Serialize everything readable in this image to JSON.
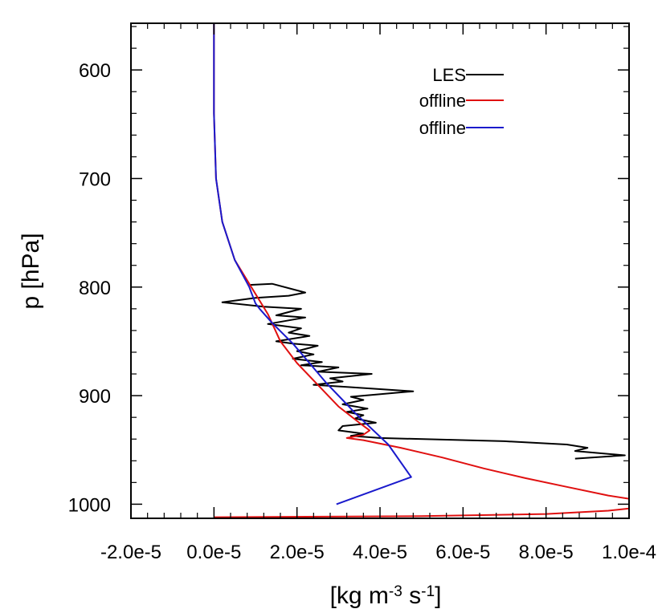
{
  "chart_data": {
    "type": "line",
    "xlabel_parts": [
      "[kg m",
      "-3",
      " s",
      "-1",
      "]"
    ],
    "ylabel": "p [hPa]",
    "xlim": [
      -2e-05,
      0.0001
    ],
    "ylim": [
      1013,
      557
    ],
    "y_inverted": true,
    "x_ticks": [
      -2e-05,
      0.0,
      2e-05,
      4e-05,
      6e-05,
      8e-05,
      0.0001
    ],
    "x_tick_labels": [
      "-2.0e-5",
      "0.0e-5",
      "2.0e-5",
      "4.0e-5",
      "6.0e-5",
      "8.0e-5",
      "1.0e-4"
    ],
    "y_ticks": [
      600,
      700,
      800,
      900,
      1000
    ],
    "y_tick_labels": [
      "600",
      "700",
      "800",
      "900",
      "1000"
    ],
    "x_minor_step": 4e-06,
    "y_minor_step": 20,
    "grid": false,
    "legend_position": "top-right",
    "series": [
      {
        "name": "LES",
        "color": "#000000",
        "points": [
          [
            8.5e-06,
            798
          ],
          [
            1.4e-05,
            797
          ],
          [
            2.2e-05,
            805
          ],
          [
            1.8e-05,
            808
          ],
          [
            1e-05,
            810
          ],
          [
            2e-06,
            814
          ],
          [
            1.2e-05,
            818
          ],
          [
            2.1e-05,
            820
          ],
          [
            1.5e-05,
            826
          ],
          [
            2.2e-05,
            828
          ],
          [
            1.3e-05,
            834
          ],
          [
            2.1e-05,
            838
          ],
          [
            1.8e-05,
            842
          ],
          [
            2.3e-05,
            845
          ],
          [
            1.5e-05,
            850
          ],
          [
            1.9e-05,
            852
          ],
          [
            2.5e-05,
            854
          ],
          [
            2e-05,
            859
          ],
          [
            2.4e-05,
            862
          ],
          [
            1.9e-05,
            866
          ],
          [
            2.6e-05,
            869
          ],
          [
            2.1e-05,
            872
          ],
          [
            3e-05,
            874
          ],
          [
            2.5e-05,
            878
          ],
          [
            3.8e-05,
            880
          ],
          [
            2.8e-05,
            884
          ],
          [
            3.1e-05,
            887
          ],
          [
            2.4e-05,
            890
          ],
          [
            3.2e-05,
            892
          ],
          [
            4.8e-05,
            896
          ],
          [
            3.3e-05,
            901
          ],
          [
            3.6e-05,
            904
          ],
          [
            3.1e-05,
            908
          ],
          [
            3.7e-05,
            912
          ],
          [
            3.2e-05,
            915
          ],
          [
            3.6e-05,
            918
          ],
          [
            3.4e-05,
            921
          ],
          [
            3.9e-05,
            925
          ],
          [
            3.1e-05,
            928
          ],
          [
            3e-05,
            932
          ],
          [
            3.6e-05,
            935
          ],
          [
            3.3e-05,
            937
          ],
          [
            4e-05,
            939
          ],
          [
            7e-05,
            942
          ],
          [
            8.5e-05,
            945
          ],
          [
            9e-05,
            948
          ],
          [
            8.7e-05,
            951
          ],
          [
            9.9e-05,
            955
          ],
          [
            8.7e-05,
            958
          ]
        ]
      },
      {
        "name": "offline",
        "color": "#e01010",
        "points": [
          [
            0.0,
            557
          ],
          [
            0.0,
            640
          ],
          [
            5e-07,
            700
          ],
          [
            2e-06,
            740
          ],
          [
            5e-06,
            775
          ],
          [
            9e-06,
            800
          ],
          [
            1.3e-05,
            825
          ],
          [
            1.6e-05,
            850
          ],
          [
            2e-05,
            870
          ],
          [
            2.5e-05,
            890
          ],
          [
            3e-05,
            910
          ],
          [
            3.5e-05,
            925
          ],
          [
            3.75e-05,
            932
          ],
          [
            3.6e-05,
            936
          ],
          [
            3.2e-05,
            939
          ],
          [
            3.6e-05,
            941
          ],
          [
            4.5e-05,
            948
          ],
          [
            5.5e-05,
            957
          ],
          [
            6.5e-05,
            967
          ],
          [
            7.5e-05,
            976
          ],
          [
            8.5e-05,
            984
          ],
          [
            9.5e-05,
            992
          ],
          [
            0.0001,
            995
          ],
          [
            0.0001,
            1004
          ],
          [
            9.5e-05,
            1006
          ],
          [
            8e-05,
            1009
          ],
          [
            5e-05,
            1011
          ],
          [
            -0.0,
            1012
          ]
        ]
      },
      {
        "name": "offline",
        "color": "#1a1acc",
        "points": [
          [
            0.0,
            557
          ],
          [
            0.0,
            640
          ],
          [
            5e-07,
            700
          ],
          [
            2e-06,
            740
          ],
          [
            5e-06,
            775
          ],
          [
            8.5e-06,
            800
          ],
          [
            9e-06,
            805
          ],
          [
            9.5e-06,
            810
          ],
          [
            1e-05,
            815
          ],
          [
            1.1e-05,
            820
          ],
          [
            1.4e-05,
            833
          ],
          [
            1.9e-05,
            852
          ],
          [
            2.3e-05,
            870
          ],
          [
            2.7e-05,
            888
          ],
          [
            3.1e-05,
            904
          ],
          [
            3.4e-05,
            916
          ],
          [
            4.2e-05,
            945
          ],
          [
            4.75e-05,
            975
          ],
          [
            2.95e-05,
            1000
          ]
        ]
      }
    ]
  }
}
